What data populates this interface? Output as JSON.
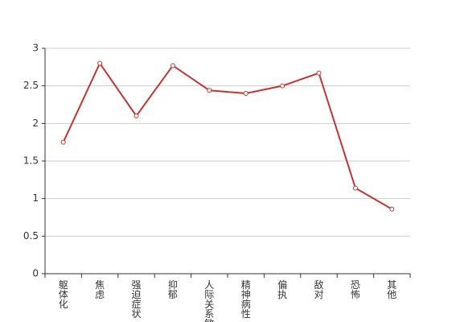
{
  "chart_data": {
    "type": "line",
    "categories": [
      "躯体化",
      "焦虑",
      "强迫症状",
      "抑郁",
      "人际关系敏感",
      "精神病性",
      "偏执",
      "敌对",
      "恐怖",
      "其他"
    ],
    "values": [
      1.75,
      2.8,
      2.1,
      2.77,
      2.44,
      2.4,
      2.5,
      2.67,
      1.14,
      0.86
    ],
    "color": "#c23531",
    "ylim": [
      0,
      3
    ],
    "yticks": [
      0,
      0.5,
      1,
      1.5,
      2,
      2.5,
      3
    ],
    "grid": true
  }
}
